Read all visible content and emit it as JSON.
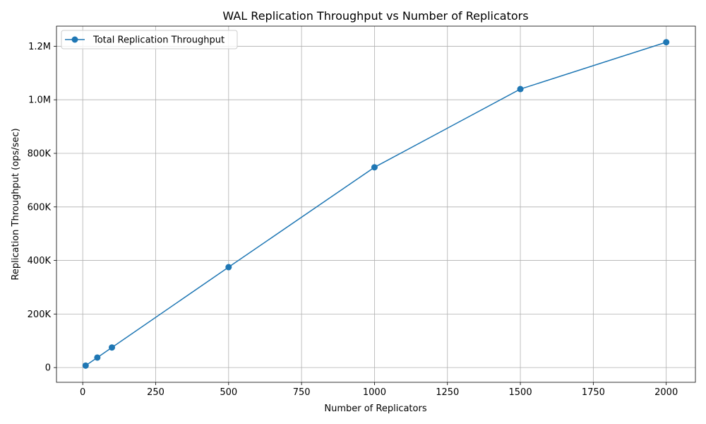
{
  "chart_data": {
    "type": "line",
    "title": "WAL Replication Throughput vs Number of Replicators",
    "xlabel": "Number of Replicators",
    "ylabel": "Replication Throughput (ops/sec)",
    "xlim": [
      -90,
      2100
    ],
    "ylim": [
      -55000,
      1275000
    ],
    "xticks": [
      0,
      250,
      500,
      750,
      1000,
      1250,
      1500,
      1750,
      2000
    ],
    "xtick_labels": [
      "0",
      "250",
      "500",
      "750",
      "1000",
      "1250",
      "1500",
      "1750",
      "2000"
    ],
    "yticks": [
      0,
      200000,
      400000,
      600000,
      800000,
      1000000,
      1200000
    ],
    "ytick_labels": [
      "0",
      "200K",
      "400K",
      "600K",
      "800K",
      "1.0M",
      "1.2M"
    ],
    "grid": true,
    "legend_position": "top-left",
    "series": [
      {
        "name": "Total Replication Throughput",
        "color": "#1f77b4",
        "marker": "circle",
        "x": [
          10,
          50,
          100,
          500,
          1000,
          1500,
          2000
        ],
        "y": [
          7500,
          37500,
          75000,
          375000,
          748000,
          1040000,
          1215000
        ]
      }
    ]
  }
}
